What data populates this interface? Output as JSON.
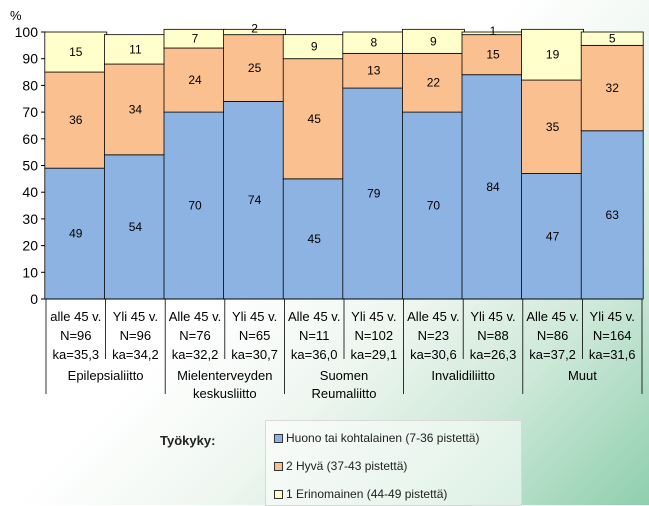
{
  "chart_data": {
    "type": "bar",
    "stacked": true,
    "ylabel": "%",
    "ylim": [
      0,
      100
    ],
    "yticks": [
      0,
      10,
      20,
      30,
      40,
      50,
      60,
      70,
      80,
      90,
      100
    ],
    "categories": [
      {
        "lines": [
          "alle 45 v.",
          "N=96",
          "ka=35,3"
        ]
      },
      {
        "lines": [
          "Yli 45 v.",
          "N=96",
          "ka=34,2"
        ]
      },
      {
        "lines": [
          "Alle 45 v.",
          "N=76",
          "ka=32,2"
        ]
      },
      {
        "lines": [
          "Yli 45 v.",
          "N=65",
          "ka=30,7"
        ]
      },
      {
        "lines": [
          "Alle 45 v.",
          "N=11",
          "ka=36,0"
        ]
      },
      {
        "lines": [
          "Yli 45 v.",
          "N=102",
          "ka=29,1"
        ]
      },
      {
        "lines": [
          "Alle 45 v.",
          "N=23",
          "ka=30,6"
        ]
      },
      {
        "lines": [
          "Yli 45 v.",
          "N=88",
          "ka=26,3"
        ]
      },
      {
        "lines": [
          "Alle 45 v.",
          "N=86",
          "ka=37,2"
        ]
      },
      {
        "lines": [
          "Yli 45 v.",
          "N=164",
          "ka=31,6"
        ]
      }
    ],
    "groups": [
      {
        "lines": [
          "Epilepsialiitto"
        ],
        "span": 2
      },
      {
        "lines": [
          "Mielenterveyden",
          "keskusliitto"
        ],
        "span": 2
      },
      {
        "lines": [
          "Suomen",
          "Reumaliitto"
        ],
        "span": 2
      },
      {
        "lines": [
          "Invalidiliitto"
        ],
        "span": 2
      },
      {
        "lines": [
          "Muut"
        ],
        "span": 2
      }
    ],
    "series": [
      {
        "name": "Huono tai kohtalainen (7-36 pistettä)",
        "color": "#8db3e2",
        "values": [
          49,
          54,
          70,
          74,
          45,
          79,
          70,
          84,
          47,
          63
        ]
      },
      {
        "name": "2 Hyvä (37-43 pistettä)",
        "color": "#fac090",
        "values": [
          36,
          34,
          24,
          25,
          45,
          13,
          22,
          15,
          35,
          32
        ]
      },
      {
        "name": "1 Erinomainen (44-49 pistettä)",
        "color": "#ffffcc",
        "values": [
          15,
          11,
          7,
          2,
          9,
          8,
          9,
          1,
          19,
          5
        ]
      }
    ],
    "legend_title": "Työkyky:",
    "legend_placement": "bottom"
  }
}
